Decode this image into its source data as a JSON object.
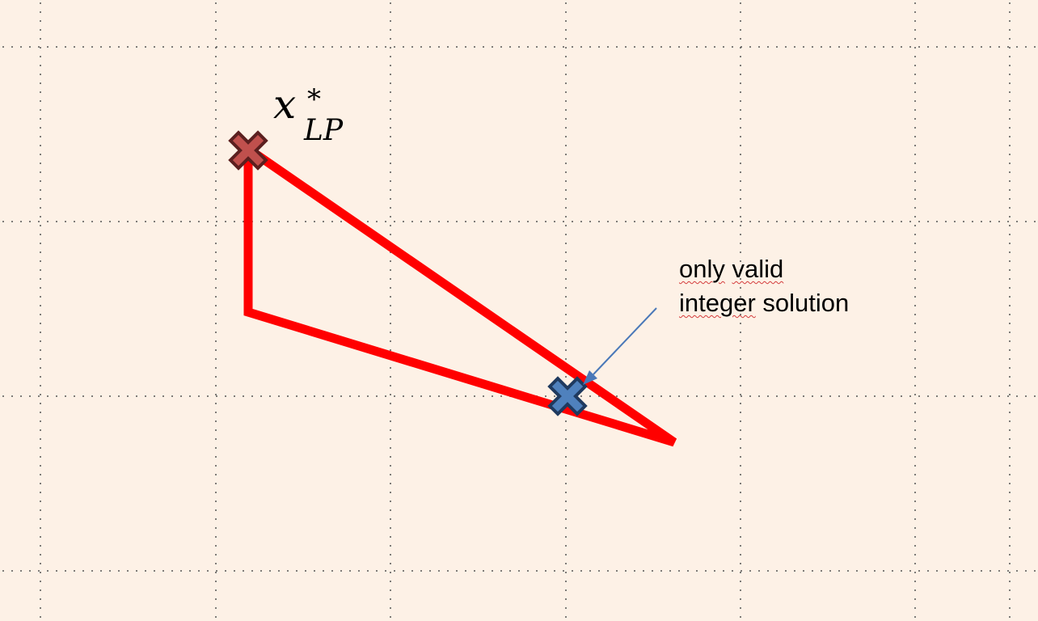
{
  "lp_label": {
    "base": "x",
    "superscript": "*",
    "subscript": "LP"
  },
  "annotation": {
    "line1_word1": "only",
    "line1_word2": "valid",
    "line2_word1": "integer",
    "line2_word2": "solution"
  },
  "colors": {
    "background": "#fdf1e6",
    "grid_dots": "#555555",
    "polygon": "#ff0000",
    "lp_marker_fill": "#c0504d",
    "lp_marker_outline": "#5b1f1f",
    "int_marker_fill": "#4f81bd",
    "int_marker_outline": "#1f3a5f",
    "arrow": "#4a78b8"
  },
  "icons": {
    "lp_optimum_marker": "cross-icon",
    "integer_solution_marker": "cross-icon",
    "pointer": "arrow-icon"
  }
}
